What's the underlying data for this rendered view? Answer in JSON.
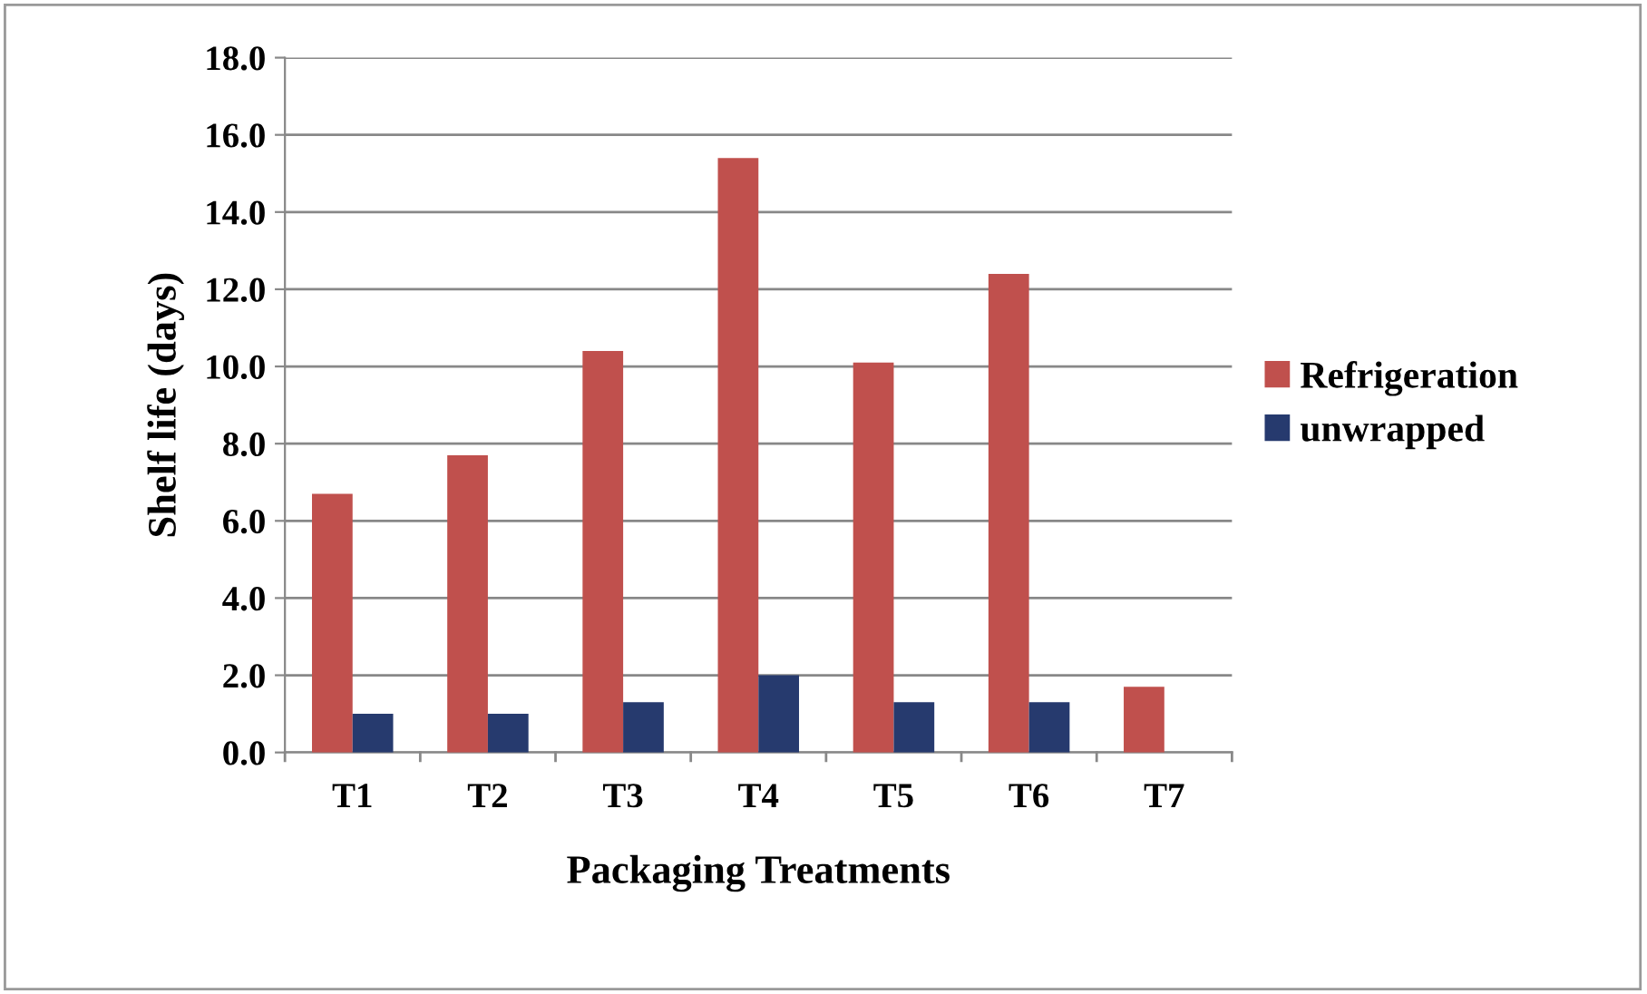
{
  "chart_data": {
    "type": "bar",
    "xlabel": "Packaging Treatments",
    "ylabel": "Shelf life (days)",
    "categories": [
      "T1",
      "T2",
      "T3",
      "T4",
      "T5",
      "T6",
      "T7"
    ],
    "series": [
      {
        "name": "Refrigeration",
        "color": "#c0504d",
        "values": [
          6.7,
          7.7,
          10.4,
          15.4,
          10.1,
          12.4,
          1.7
        ]
      },
      {
        "name": "unwrapped",
        "color": "#263a6e",
        "values": [
          1.0,
          1.0,
          1.3,
          2.0,
          1.3,
          1.3,
          null
        ]
      }
    ],
    "ylim": [
      0,
      18
    ],
    "yticks": [
      {
        "value": 0,
        "label": "0.0"
      },
      {
        "value": 2,
        "label": "2.0"
      },
      {
        "value": 4,
        "label": "4.0"
      },
      {
        "value": 6,
        "label": "6.0"
      },
      {
        "value": 8,
        "label": "8.0"
      },
      {
        "value": 10,
        "label": "10.0"
      },
      {
        "value": 12,
        "label": "12.0"
      },
      {
        "value": 14,
        "label": "14.0"
      },
      {
        "value": 16,
        "label": "16.0"
      },
      {
        "value": 18,
        "label": "18.0"
      }
    ],
    "grid": "y",
    "legend": "right"
  }
}
